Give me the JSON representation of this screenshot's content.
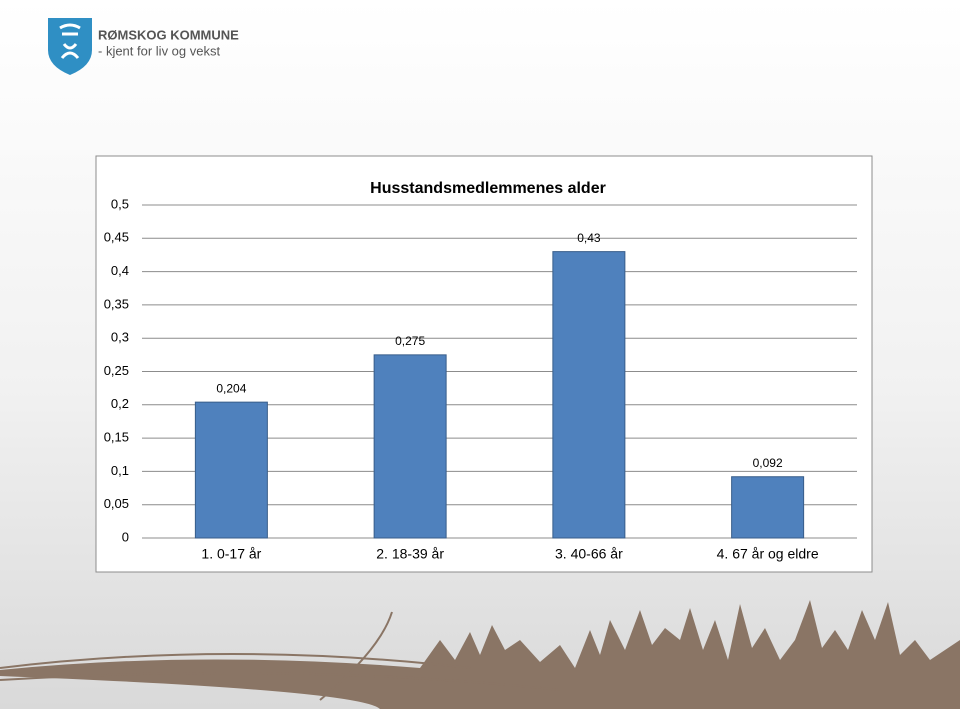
{
  "header": {
    "title": "RØMSKOG KOMMUNE",
    "subtitle": "- kjent for liv og vekst"
  },
  "chart_data": {
    "type": "bar",
    "title": "Husstandsmedlemmenes alder",
    "categories": [
      "1. 0-17 år",
      "2. 18-39 år",
      "3. 40-66 år",
      "4. 67 år og eldre"
    ],
    "values": [
      0.204,
      0.275,
      0.43,
      0.092
    ],
    "value_labels": [
      "0,204",
      "0,275",
      "0,43",
      "0,092"
    ],
    "color": "#4f81bd",
    "ylim": [
      0,
      0.5
    ],
    "yticks": [
      0,
      {
        "value": 0.05,
        "label": "0,05"
      },
      {
        "value": 0.1,
        "label": "0,1"
      },
      {
        "value": 0.15,
        "label": "0,15"
      },
      {
        "value": 0.2,
        "label": "0,2"
      },
      {
        "value": 0.25,
        "label": "0,25"
      },
      {
        "value": 0.3,
        "label": "0,3"
      },
      {
        "value": 0.35,
        "label": "0,35"
      },
      {
        "value": 0.4,
        "label": "0,4"
      },
      {
        "value": 0.45,
        "label": "0,45"
      },
      {
        "value": 0.5,
        "label": "0,5"
      }
    ],
    "grid": true
  }
}
